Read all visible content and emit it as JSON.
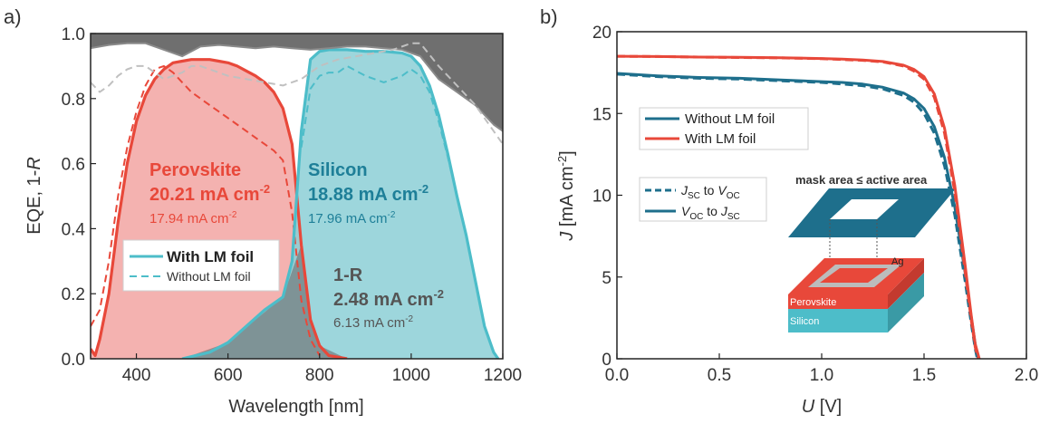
{
  "panel_a": {
    "label": "a)",
    "ylabel_main": "EQE, 1-",
    "ylabel_italic": "R",
    "xlabel": "Wavelength [nm]",
    "xticks": [
      "400",
      "600",
      "800",
      "1000",
      "1200"
    ],
    "yticks": [
      "0.0",
      "0.2",
      "0.4",
      "0.6",
      "0.8",
      "1.0"
    ],
    "perovskite": {
      "name": "Perovskite",
      "jsc_with": "20.21 mA cm",
      "jsc_without": "17.94 mA cm",
      "exp": "-2"
    },
    "silicon": {
      "name": "Silicon",
      "jsc_with": "18.88 mA cm",
      "jsc_without": "17.96 mA cm",
      "exp": "-2"
    },
    "reflection": {
      "name": "1-R",
      "jsc_with": "2.48 mA cm",
      "jsc_without": "6.13 mA cm",
      "exp": "-2"
    },
    "legend": {
      "with": "With LM foil",
      "without": "Without LM foil"
    }
  },
  "panel_b": {
    "label": "b)",
    "ylabel_italic": "J",
    "ylabel_unit": " [mA cm",
    "ylabel_exp": "-2",
    "ylabel_close": "]",
    "xlabel_italic": "U",
    "xlabel_unit": " [V]",
    "xticks": [
      "0.0",
      "0.5",
      "1.0",
      "1.5",
      "2.0"
    ],
    "yticks": [
      "0",
      "5",
      "10",
      "15",
      "20"
    ],
    "legend": {
      "without": "Without LM foil",
      "with": "With LM foil"
    },
    "scan_legend": {
      "jsc": "J",
      "sc": "SC",
      "to": " to ",
      "voc": "V",
      "oc": "OC"
    },
    "inset": {
      "title": "mask area ≤ active area",
      "ag": "Ag",
      "perovskite": "Perovskite",
      "silicon": "Silicon"
    }
  },
  "colors": {
    "perovskite": "#e8483a",
    "perovskite_fill": "#f2a5a2",
    "silicon": "#1e6f8c",
    "silicon_line": "#4dbdc9",
    "silicon_fill": "#8ccfd6",
    "reflect": "#6f6f6f",
    "reflect_dashed": "#c0c0c0"
  },
  "chart_data": [
    {
      "type": "area",
      "title": "",
      "xlabel": "Wavelength [nm]",
      "ylabel": "EQE, 1-R",
      "xlim": [
        300,
        1200
      ],
      "ylim": [
        0,
        1.0
      ],
      "series": [
        {
          "name": "Perovskite",
          "style": "with LM foil",
          "x": [
            300,
            310,
            320,
            340,
            360,
            380,
            400,
            420,
            440,
            460,
            480,
            500,
            520,
            540,
            560,
            580,
            600,
            620,
            640,
            660,
            680,
            700,
            720,
            740,
            760,
            780,
            800,
            820,
            840,
            860
          ],
          "y": [
            0.03,
            0.01,
            0.06,
            0.2,
            0.42,
            0.6,
            0.73,
            0.81,
            0.86,
            0.89,
            0.91,
            0.915,
            0.92,
            0.92,
            0.92,
            0.915,
            0.91,
            0.9,
            0.885,
            0.87,
            0.85,
            0.82,
            0.77,
            0.66,
            0.35,
            0.12,
            0.04,
            0.01,
            0.005,
            0.0
          ]
        },
        {
          "name": "Perovskite",
          "style": "without LM foil",
          "x": [
            300,
            320,
            340,
            360,
            380,
            400,
            420,
            440,
            460,
            480,
            500,
            520,
            540,
            560,
            580,
            600,
            620,
            640,
            660,
            680,
            700,
            720,
            740,
            760,
            780,
            800
          ],
          "y": [
            0.1,
            0.15,
            0.3,
            0.5,
            0.65,
            0.76,
            0.84,
            0.89,
            0.9,
            0.88,
            0.85,
            0.82,
            0.8,
            0.78,
            0.76,
            0.74,
            0.72,
            0.7,
            0.68,
            0.66,
            0.64,
            0.61,
            0.45,
            0.18,
            0.06,
            0.01
          ]
        },
        {
          "name": "Silicon",
          "style": "with LM foil",
          "x": [
            500,
            560,
            600,
            640,
            680,
            720,
            740,
            760,
            780,
            800,
            820,
            840,
            860,
            900,
            940,
            980,
            1000,
            1020,
            1040,
            1060,
            1080,
            1100,
            1120,
            1140,
            1160,
            1180,
            1190
          ],
          "y": [
            0.0,
            0.02,
            0.05,
            0.1,
            0.15,
            0.19,
            0.3,
            0.7,
            0.92,
            0.945,
            0.95,
            0.95,
            0.95,
            0.945,
            0.945,
            0.94,
            0.93,
            0.9,
            0.84,
            0.75,
            0.63,
            0.5,
            0.38,
            0.24,
            0.1,
            0.02,
            0.0
          ]
        },
        {
          "name": "Silicon",
          "style": "without LM foil",
          "x": [
            760,
            780,
            800,
            820,
            840,
            860,
            900,
            940,
            980,
            1000,
            1020,
            1040,
            1060,
            1080,
            1100,
            1120,
            1140,
            1160,
            1180,
            1190
          ],
          "y": [
            0.65,
            0.83,
            0.87,
            0.88,
            0.88,
            0.9,
            0.87,
            0.85,
            0.87,
            0.89,
            0.87,
            0.82,
            0.73,
            0.62,
            0.5,
            0.38,
            0.24,
            0.1,
            0.02,
            0.0
          ]
        },
        {
          "name": "1-R",
          "style": "with LM foil",
          "x": [
            300,
            340,
            380,
            420,
            460,
            500,
            540,
            580,
            620,
            660,
            700,
            740,
            780,
            820,
            860,
            900,
            940,
            980,
            1000,
            1020,
            1060,
            1100,
            1140,
            1180,
            1200
          ],
          "y": [
            0.955,
            0.965,
            0.97,
            0.97,
            0.95,
            0.93,
            0.96,
            0.965,
            0.96,
            0.955,
            0.96,
            0.955,
            0.95,
            0.955,
            0.96,
            0.96,
            0.955,
            0.95,
            0.94,
            0.93,
            0.86,
            0.82,
            0.78,
            0.72,
            0.7
          ]
        },
        {
          "name": "1-R",
          "style": "without LM foil",
          "x": [
            300,
            320,
            340,
            360,
            380,
            400,
            420,
            440,
            460,
            480,
            500,
            520,
            540,
            560,
            580,
            600,
            640,
            680,
            720,
            760,
            800,
            840,
            880,
            920,
            960,
            1000,
            1020,
            1060,
            1100,
            1140,
            1180,
            1200
          ],
          "y": [
            0.85,
            0.82,
            0.84,
            0.87,
            0.89,
            0.9,
            0.9,
            0.88,
            0.86,
            0.87,
            0.88,
            0.9,
            0.9,
            0.89,
            0.88,
            0.87,
            0.86,
            0.85,
            0.84,
            0.86,
            0.9,
            0.92,
            0.93,
            0.94,
            0.95,
            0.97,
            0.97,
            0.9,
            0.84,
            0.78,
            0.7,
            0.66
          ]
        }
      ]
    },
    {
      "type": "line",
      "title": "",
      "xlabel": "U [V]",
      "ylabel": "J [mA cm-2]",
      "xlim": [
        0,
        2.0
      ],
      "ylim": [
        0,
        20
      ],
      "series": [
        {
          "name": "Without LM foil",
          "scan": "Jsc to Voc",
          "x": [
            0,
            0.2,
            0.4,
            0.6,
            0.8,
            1.0,
            1.1,
            1.2,
            1.3,
            1.4,
            1.45,
            1.5,
            1.55,
            1.6,
            1.65,
            1.7,
            1.73,
            1.75,
            1.76
          ],
          "y": [
            17.4,
            17.25,
            17.15,
            17.1,
            17.0,
            16.9,
            16.8,
            16.7,
            16.5,
            16.1,
            15.7,
            15.0,
            13.8,
            11.8,
            8.8,
            4.8,
            2.2,
            0.6,
            0
          ]
        },
        {
          "name": "Without LM foil",
          "scan": "Voc to Jsc",
          "x": [
            0,
            0.2,
            0.4,
            0.6,
            0.8,
            1.0,
            1.1,
            1.2,
            1.3,
            1.4,
            1.45,
            1.5,
            1.55,
            1.6,
            1.65,
            1.7,
            1.73,
            1.75,
            1.765
          ],
          "y": [
            17.45,
            17.3,
            17.2,
            17.15,
            17.05,
            16.95,
            16.9,
            16.8,
            16.6,
            16.25,
            15.9,
            15.3,
            14.2,
            12.3,
            9.3,
            5.3,
            2.6,
            0.9,
            0
          ]
        },
        {
          "name": "With LM foil",
          "scan": "Jsc to Voc",
          "x": [
            0,
            0.2,
            0.4,
            0.6,
            0.8,
            1.0,
            1.1,
            1.2,
            1.3,
            1.4,
            1.45,
            1.5,
            1.55,
            1.6,
            1.65,
            1.7,
            1.73,
            1.75,
            1.765
          ],
          "y": [
            18.5,
            18.48,
            18.45,
            18.42,
            18.4,
            18.35,
            18.3,
            18.25,
            18.15,
            17.9,
            17.6,
            17.1,
            16.0,
            13.8,
            10.2,
            5.4,
            2.4,
            0.7,
            0
          ]
        },
        {
          "name": "With LM foil",
          "scan": "Voc to Jsc",
          "x": [
            0,
            0.2,
            0.4,
            0.6,
            0.8,
            1.0,
            1.1,
            1.2,
            1.3,
            1.4,
            1.45,
            1.5,
            1.55,
            1.6,
            1.65,
            1.7,
            1.73,
            1.75,
            1.77
          ],
          "y": [
            18.5,
            18.48,
            18.45,
            18.43,
            18.41,
            18.36,
            18.32,
            18.27,
            18.18,
            17.95,
            17.7,
            17.25,
            16.2,
            14.1,
            10.6,
            5.8,
            2.7,
            0.9,
            0
          ]
        }
      ]
    }
  ]
}
